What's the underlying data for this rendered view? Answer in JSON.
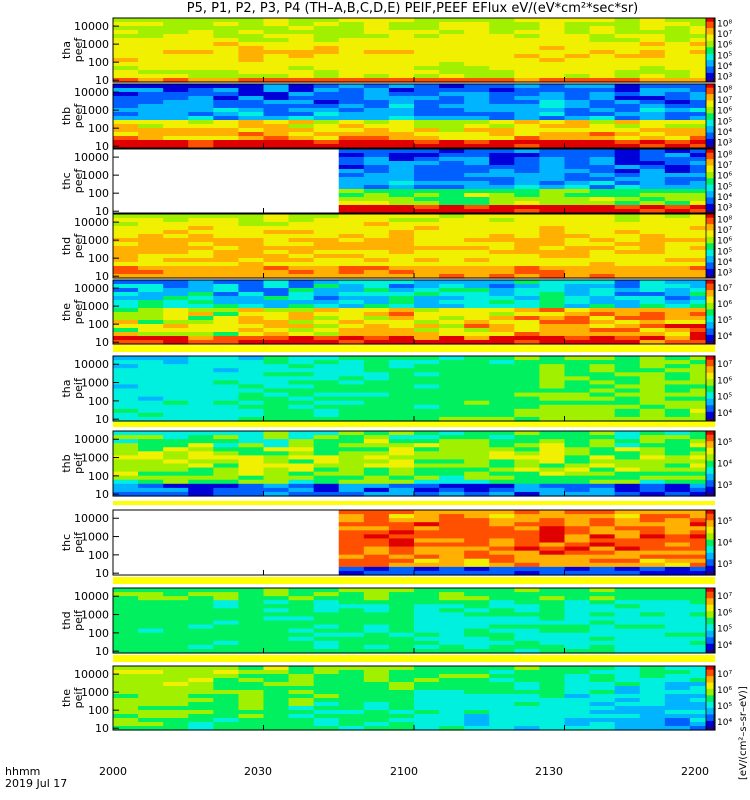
{
  "title": "P5, P1, P2, P3, P4 (TH–A,B,C,D,E) PEIF,PEEF EFlux eV/(eV*cm²*sec*sr)",
  "time_axis": {
    "label_line1": "hhmm",
    "label_line2": "2019 Jul 17",
    "ticks": [
      "2000",
      "2030",
      "2100",
      "2130",
      "2200"
    ]
  },
  "colorbar_unit": "[eV/(cm²–s–sr–eV)]",
  "colors": {
    "spectrum": [
      "#2a006e",
      "#0000d8",
      "#0060ff",
      "#00b4ff",
      "#00f0e0",
      "#00f060",
      "#a0f000",
      "#f0f000",
      "#ffb000",
      "#ff5000",
      "#e00000"
    ],
    "missing": "#ffffff",
    "band": "#ffff00"
  },
  "chart_data": [
    {
      "type": "heatmap",
      "panel": "tha peef",
      "ylabel1": "tha",
      "ylabel2": "peef",
      "yticks": [
        "10",
        "100",
        "1000",
        "10000"
      ],
      "scale": "log",
      "cbar_ticks": [
        "10³",
        "10⁴",
        "10⁵",
        "10⁶",
        "10⁷",
        "10⁸"
      ],
      "missing_until": null,
      "x_range": [
        "2000",
        "2200"
      ]
    },
    {
      "type": "heatmap",
      "panel": "thb peef",
      "ylabel1": "thb",
      "ylabel2": "peef",
      "yticks": [
        "10",
        "100",
        "1000",
        "10000"
      ],
      "scale": "log",
      "cbar_ticks": [
        "10³",
        "10⁴",
        "10⁵",
        "10⁶",
        "10⁷",
        "10⁸"
      ],
      "missing_until": null,
      "x_range": [
        "2000",
        "2200"
      ]
    },
    {
      "type": "heatmap",
      "panel": "thc peef",
      "ylabel1": "thc",
      "ylabel2": "peef",
      "yticks": [
        "10",
        "100",
        "1000",
        "10000"
      ],
      "scale": "log",
      "cbar_ticks": [
        "10³",
        "10⁴",
        "10⁵",
        "10⁶",
        "10⁷",
        "10⁸"
      ],
      "missing_until": "2045",
      "x_range": [
        "2000",
        "2200"
      ]
    },
    {
      "type": "heatmap",
      "panel": "thd peef",
      "ylabel1": "thd",
      "ylabel2": "peef",
      "yticks": [
        "10",
        "100",
        "1000",
        "10000"
      ],
      "scale": "log",
      "cbar_ticks": [
        "10³",
        "10⁴",
        "10⁵",
        "10⁶",
        "10⁷",
        "10⁸"
      ],
      "missing_until": null,
      "x_range": [
        "2000",
        "2200"
      ]
    },
    {
      "type": "heatmap",
      "panel": "the peef",
      "ylabel1": "the",
      "ylabel2": "peef",
      "yticks": [
        "10",
        "100",
        "1000",
        "10000"
      ],
      "scale": "log",
      "cbar_ticks": [
        "10⁴",
        "10⁵",
        "10⁶",
        "10⁷"
      ],
      "missing_until": null,
      "x_range": [
        "2000",
        "2200"
      ]
    },
    {
      "type": "heatmap",
      "panel": "tha peif",
      "ylabel1": "tha",
      "ylabel2": "peif",
      "yticks": [
        "10",
        "100",
        "1000",
        "10000"
      ],
      "scale": "log",
      "cbar_ticks": [
        "10⁴",
        "10⁵",
        "10⁶",
        "10⁷"
      ],
      "missing_until": null,
      "x_range": [
        "2000",
        "2200"
      ]
    },
    {
      "type": "heatmap",
      "panel": "thb peif",
      "ylabel1": "thb",
      "ylabel2": "peif",
      "yticks": [
        "10",
        "100",
        "1000",
        "10000"
      ],
      "scale": "log",
      "cbar_ticks": [
        "10³",
        "10⁴",
        "10⁵"
      ],
      "missing_until": null,
      "x_range": [
        "2000",
        "2200"
      ]
    },
    {
      "type": "heatmap",
      "panel": "thc peif",
      "ylabel1": "thc",
      "ylabel2": "peif",
      "yticks": [
        "10",
        "100",
        "1000",
        "10000"
      ],
      "scale": "log",
      "cbar_ticks": [
        "10³",
        "10⁴",
        "10⁵"
      ],
      "missing_until": "2045",
      "x_range": [
        "2000",
        "2200"
      ]
    },
    {
      "type": "heatmap",
      "panel": "thd peif",
      "ylabel1": "thd",
      "ylabel2": "peif",
      "yticks": [
        "10",
        "100",
        "1000",
        "10000"
      ],
      "scale": "log",
      "cbar_ticks": [
        "10⁴",
        "10⁵",
        "10⁶",
        "10⁷"
      ],
      "missing_until": null,
      "x_range": [
        "2000",
        "2200"
      ]
    },
    {
      "type": "heatmap",
      "panel": "the peif",
      "ylabel1": "the",
      "ylabel2": "peif",
      "yticks": [
        "10",
        "100",
        "1000",
        "10000"
      ],
      "scale": "log",
      "cbar_ticks": [
        "10⁴",
        "10⁵",
        "10⁶",
        "10⁷"
      ],
      "missing_until": null,
      "x_range": [
        "2000",
        "2200"
      ]
    }
  ]
}
